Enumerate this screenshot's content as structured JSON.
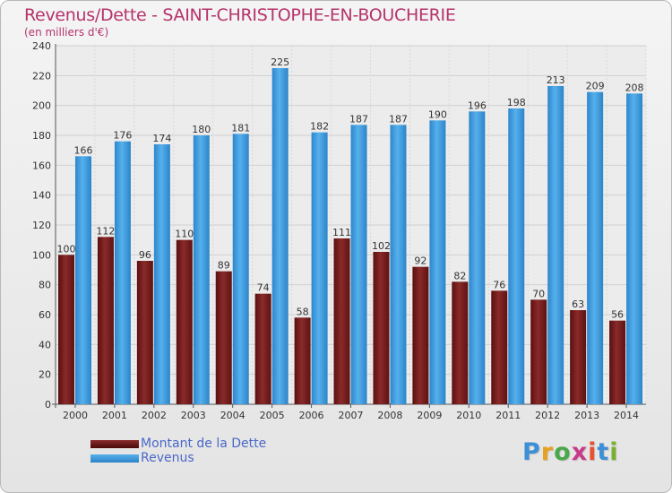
{
  "title": "Revenus/Dette - SAINT-CHRISTOPHE-EN-BOUCHERIE",
  "subtitle": "(en milliers d'€)",
  "logo": {
    "text": "Proxiti",
    "colors": [
      "#3d8fd6",
      "#e8a020",
      "#4aa84a",
      "#c83a8a",
      "#e85030",
      "#3d8fd6",
      "#7ab030"
    ]
  },
  "legend": [
    {
      "name": "Montant de la Dette",
      "color": "#7a1c1c"
    },
    {
      "name": "Revenus",
      "color": "#3d9ee0"
    }
  ],
  "chart_data": {
    "type": "bar",
    "title": "Revenus/Dette - SAINT-CHRISTOPHE-EN-BOUCHERIE",
    "ylabel": "(en milliers d'€)",
    "xlabel": "",
    "ylim": [
      0,
      240
    ],
    "yticks": [
      0,
      20,
      40,
      60,
      80,
      100,
      120,
      140,
      160,
      180,
      200,
      220,
      240
    ],
    "grid": true,
    "legend_position": "bottom-left",
    "categories": [
      "2000",
      "2001",
      "2002",
      "2003",
      "2004",
      "2005",
      "2006",
      "2007",
      "2008",
      "2009",
      "2010",
      "2011",
      "2012",
      "2013",
      "2014"
    ],
    "series": [
      {
        "name": "Montant de la Dette",
        "color": "#7a1c1c",
        "values": [
          100,
          112,
          96,
          110,
          89,
          74,
          58,
          111,
          102,
          92,
          82,
          76,
          70,
          63,
          56
        ]
      },
      {
        "name": "Revenus",
        "color": "#3d9ee0",
        "values": [
          166,
          176,
          174,
          180,
          181,
          225,
          182,
          187,
          187,
          190,
          196,
          198,
          213,
          209,
          208
        ]
      }
    ]
  }
}
